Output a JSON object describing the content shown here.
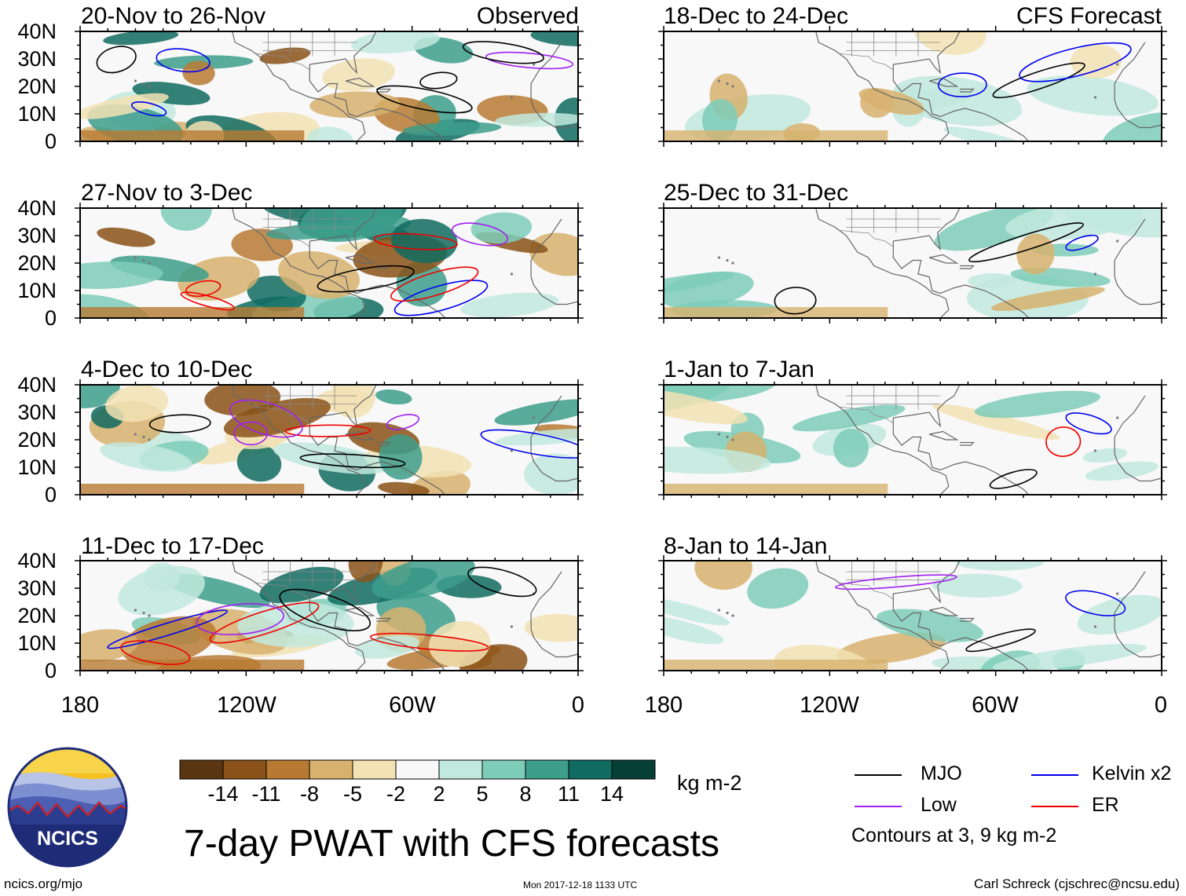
{
  "main_title": "7-day PWAT with CFS forecasts",
  "observed_label": "Observed",
  "forecast_label": "CFS Forecast",
  "panels": {
    "observed": [
      "20-Nov to 26-Nov",
      "27-Nov to 3-Dec",
      "4-Dec to 10-Dec",
      "11-Dec to 17-Dec"
    ],
    "forecast": [
      "18-Dec to 24-Dec",
      "25-Dec to 31-Dec",
      "1-Jan to 7-Jan",
      "8-Jan to 14-Jan"
    ]
  },
  "y_axis_labels": [
    "40N",
    "30N",
    "20N",
    "10N",
    "0"
  ],
  "x_axis_labels": [
    "180",
    "120W",
    "60W",
    "0"
  ],
  "colorbar": {
    "units": "kg m-2",
    "tick_labels": [
      "-14",
      "-11",
      "-8",
      "-5",
      "-2",
      "2",
      "5",
      "8",
      "11",
      "14"
    ],
    "colors": [
      "#5a3512",
      "#8a5218",
      "#b87a33",
      "#d7b26e",
      "#f2e2b4",
      "#f8f8f8",
      "#c2e9dd",
      "#7ecdb8",
      "#3d9e8c",
      "#106b60",
      "#053f36"
    ]
  },
  "legend": {
    "items": [
      {
        "label": "MJO",
        "color": "#000000"
      },
      {
        "label": "Kelvin x2",
        "color": "#0000ee"
      },
      {
        "label": "Low",
        "color": "#a020f0"
      },
      {
        "label": "ER",
        "color": "#ee0000"
      }
    ],
    "note": "Contours at 3, 9 kg m-2"
  },
  "logo": {
    "text": "NCICS"
  },
  "footer": {
    "url": "ncics.org/mjo",
    "timestamp": "Mon 2017-12-18 1133 UTC",
    "credit": "Carl Schreck (cjschrec@ncsu.edu)"
  }
}
